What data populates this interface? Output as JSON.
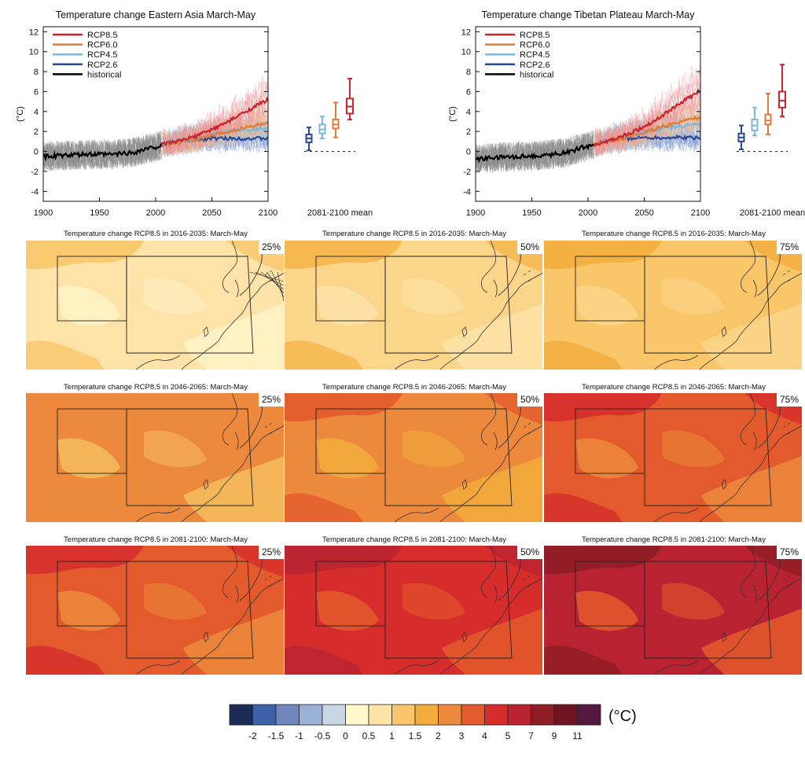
{
  "chart_data": [
    {
      "type": "line",
      "title": "Temperature change Eastern Asia March-May",
      "ylabel": "(°C)",
      "xlim": [
        1900,
        2100
      ],
      "ylim": [
        -5,
        12.5
      ],
      "xticks": [
        "1900",
        "1950",
        "2000",
        "2050",
        "2100"
      ],
      "yticks": [
        "12",
        "10",
        "8",
        "6",
        "4",
        "2",
        "0",
        "-2",
        "-4"
      ],
      "legend_position": "top-left",
      "series": [
        {
          "name": "RCP8.5",
          "color": "#c9252b",
          "x": [
            2006,
            2020,
            2035,
            2050,
            2065,
            2080,
            2100
          ],
          "values": [
            0.7,
            1.0,
            1.5,
            2.2,
            3.0,
            4.0,
            5.2
          ]
        },
        {
          "name": "RCP6.0",
          "color": "#e07b39",
          "x": [
            2006,
            2020,
            2035,
            2050,
            2065,
            2080,
            2100
          ],
          "values": [
            0.7,
            0.9,
            1.2,
            1.6,
            2.0,
            2.4,
            2.9
          ]
        },
        {
          "name": "RCP4.5",
          "color": "#7fb7dc",
          "x": [
            2006,
            2020,
            2035,
            2050,
            2065,
            2080,
            2100
          ],
          "values": [
            0.7,
            1.0,
            1.3,
            1.7,
            2.0,
            2.2,
            2.3
          ]
        },
        {
          "name": "RCP2.6",
          "color": "#2a4a96",
          "x": [
            2006,
            2020,
            2035,
            2050,
            2065,
            2080,
            2100
          ],
          "values": [
            0.7,
            1.0,
            1.2,
            1.3,
            1.3,
            1.3,
            1.3
          ]
        },
        {
          "name": "historical",
          "color": "#000000",
          "x": [
            1900,
            1920,
            1940,
            1960,
            1980,
            1990,
            2005
          ],
          "values": [
            -0.5,
            -0.4,
            -0.3,
            -0.3,
            -0.1,
            0.2,
            0.6
          ]
        }
      ],
      "boxplot_label": "2081-2100 mean",
      "boxplots": [
        {
          "name": "RCP2.6",
          "min": 0.1,
          "q1": 0.9,
          "median": 1.3,
          "q3": 1.7,
          "max": 2.4
        },
        {
          "name": "RCP4.5",
          "min": 1.3,
          "q1": 1.8,
          "median": 2.2,
          "q3": 2.7,
          "max": 3.5
        },
        {
          "name": "RCP6.0",
          "min": 1.4,
          "q1": 2.3,
          "median": 2.7,
          "q3": 3.2,
          "max": 4.9
        },
        {
          "name": "RCP8.5",
          "min": 3.2,
          "q1": 3.8,
          "median": 4.5,
          "q3": 5.3,
          "max": 7.3
        }
      ]
    },
    {
      "type": "line",
      "title": "Temperature change Tibetan Plateau March-May",
      "ylabel": "(°C)",
      "xlim": [
        1900,
        2100
      ],
      "ylim": [
        -5,
        12.5
      ],
      "xticks": [
        "1900",
        "1950",
        "2000",
        "2050",
        "2100"
      ],
      "yticks": [
        "12",
        "10",
        "8",
        "6",
        "4",
        "2",
        "0",
        "-2",
        "-4"
      ],
      "legend_position": "top-left",
      "series": [
        {
          "name": "RCP8.5",
          "color": "#c9252b",
          "x": [
            2006,
            2020,
            2035,
            2050,
            2065,
            2080,
            2100
          ],
          "values": [
            0.7,
            1.1,
            1.7,
            2.5,
            3.5,
            4.7,
            6.1
          ]
        },
        {
          "name": "RCP6.0",
          "color": "#e07b39",
          "x": [
            2006,
            2020,
            2035,
            2050,
            2065,
            2080,
            2100
          ],
          "values": [
            0.7,
            1.0,
            1.4,
            1.9,
            2.4,
            2.9,
            3.4
          ]
        },
        {
          "name": "RCP4.5",
          "color": "#7fb7dc",
          "x": [
            2006,
            2020,
            2035,
            2050,
            2065,
            2080,
            2100
          ],
          "values": [
            0.7,
            1.1,
            1.5,
            1.9,
            2.3,
            2.5,
            2.7
          ]
        },
        {
          "name": "RCP2.6",
          "color": "#2a4a96",
          "x": [
            2006,
            2020,
            2035,
            2050,
            2065,
            2080,
            2100
          ],
          "values": [
            0.7,
            1.1,
            1.3,
            1.4,
            1.4,
            1.4,
            1.4
          ]
        },
        {
          "name": "historical",
          "color": "#000000",
          "x": [
            1900,
            1920,
            1940,
            1960,
            1980,
            1990,
            2005
          ],
          "values": [
            -0.8,
            -0.6,
            -0.5,
            -0.4,
            -0.1,
            0.2,
            0.7
          ]
        }
      ],
      "boxplot_label": "2081-2100 mean",
      "boxplots": [
        {
          "name": "RCP2.6",
          "min": 0.2,
          "q1": 1.0,
          "median": 1.4,
          "q3": 1.8,
          "max": 2.6
        },
        {
          "name": "RCP4.5",
          "min": 1.6,
          "q1": 2.1,
          "median": 2.6,
          "q3": 3.2,
          "max": 4.4
        },
        {
          "name": "RCP6.0",
          "min": 1.7,
          "q1": 2.7,
          "median": 3.1,
          "q3": 3.7,
          "max": 5.8
        },
        {
          "name": "RCP8.5",
          "min": 3.5,
          "q1": 4.4,
          "median": 5.1,
          "q3": 6.0,
          "max": 8.7
        }
      ]
    },
    {
      "type": "heatmap",
      "unit": "(°C)",
      "colorbar_ticks": [
        "-2",
        "-1.5",
        "-1",
        "-0.5",
        "0",
        "0.5",
        "1",
        "1.5",
        "2",
        "3",
        "4",
        "5",
        "7",
        "9",
        "11"
      ],
      "colorbar_colors": [
        "#1c2b56",
        "#3d61a8",
        "#6f87bb",
        "#9ab0d5",
        "#c9d6e6",
        "#fff8cc",
        "#fde3a8",
        "#f9c66a",
        "#f3ad3d",
        "#ec893c",
        "#e35b2c",
        "#d62d2c",
        "#b92331",
        "#8e1d26",
        "#6d1420",
        "#55183f"
      ],
      "maps": [
        {
          "title": "Temperature change RCP8.5 in 2016-2035: March-May",
          "percentile": "25%",
          "base": "#fde3a8",
          "shade": "#fff3c6",
          "warm": "#f9c66a"
        },
        {
          "title": "Temperature change RCP8.5 in 2016-2035: March-May",
          "percentile": "50%",
          "base": "#fbd58a",
          "shade": "#fde3a8",
          "warm": "#f5b54a"
        },
        {
          "title": "Temperature change RCP8.5 in 2016-2035: March-May",
          "percentile": "75%",
          "base": "#f9c66a",
          "shade": "#fbd58a",
          "warm": "#f3ad3d"
        },
        {
          "title": "Temperature change RCP8.5 in 2046-2065: March-May",
          "percentile": "25%",
          "base": "#ec893c",
          "shade": "#f6bd5e",
          "warm": "#ec893c"
        },
        {
          "title": "Temperature change RCP8.5 in 2046-2065: March-May",
          "percentile": "50%",
          "base": "#ec893c",
          "shade": "#f3ad3d",
          "warm": "#e35b2c"
        },
        {
          "title": "Temperature change RCP8.5 in 2046-2065: March-May",
          "percentile": "75%",
          "base": "#e35b2c",
          "shade": "#ec893c",
          "warm": "#d62d2c"
        },
        {
          "title": "Temperature change RCP8.5 in 2081-2100: March-May",
          "percentile": "25%",
          "base": "#e35b2c",
          "shade": "#ec893c",
          "warm": "#d62d2c"
        },
        {
          "title": "Temperature change RCP8.5 in 2081-2100: March-May",
          "percentile": "50%",
          "base": "#d62d2c",
          "shade": "#e35b2c",
          "warm": "#b92331"
        },
        {
          "title": "Temperature change RCP8.5 in 2081-2100: March-May",
          "percentile": "75%",
          "base": "#b92331",
          "shade": "#e35b2c",
          "warm": "#8e1d26"
        }
      ]
    }
  ]
}
